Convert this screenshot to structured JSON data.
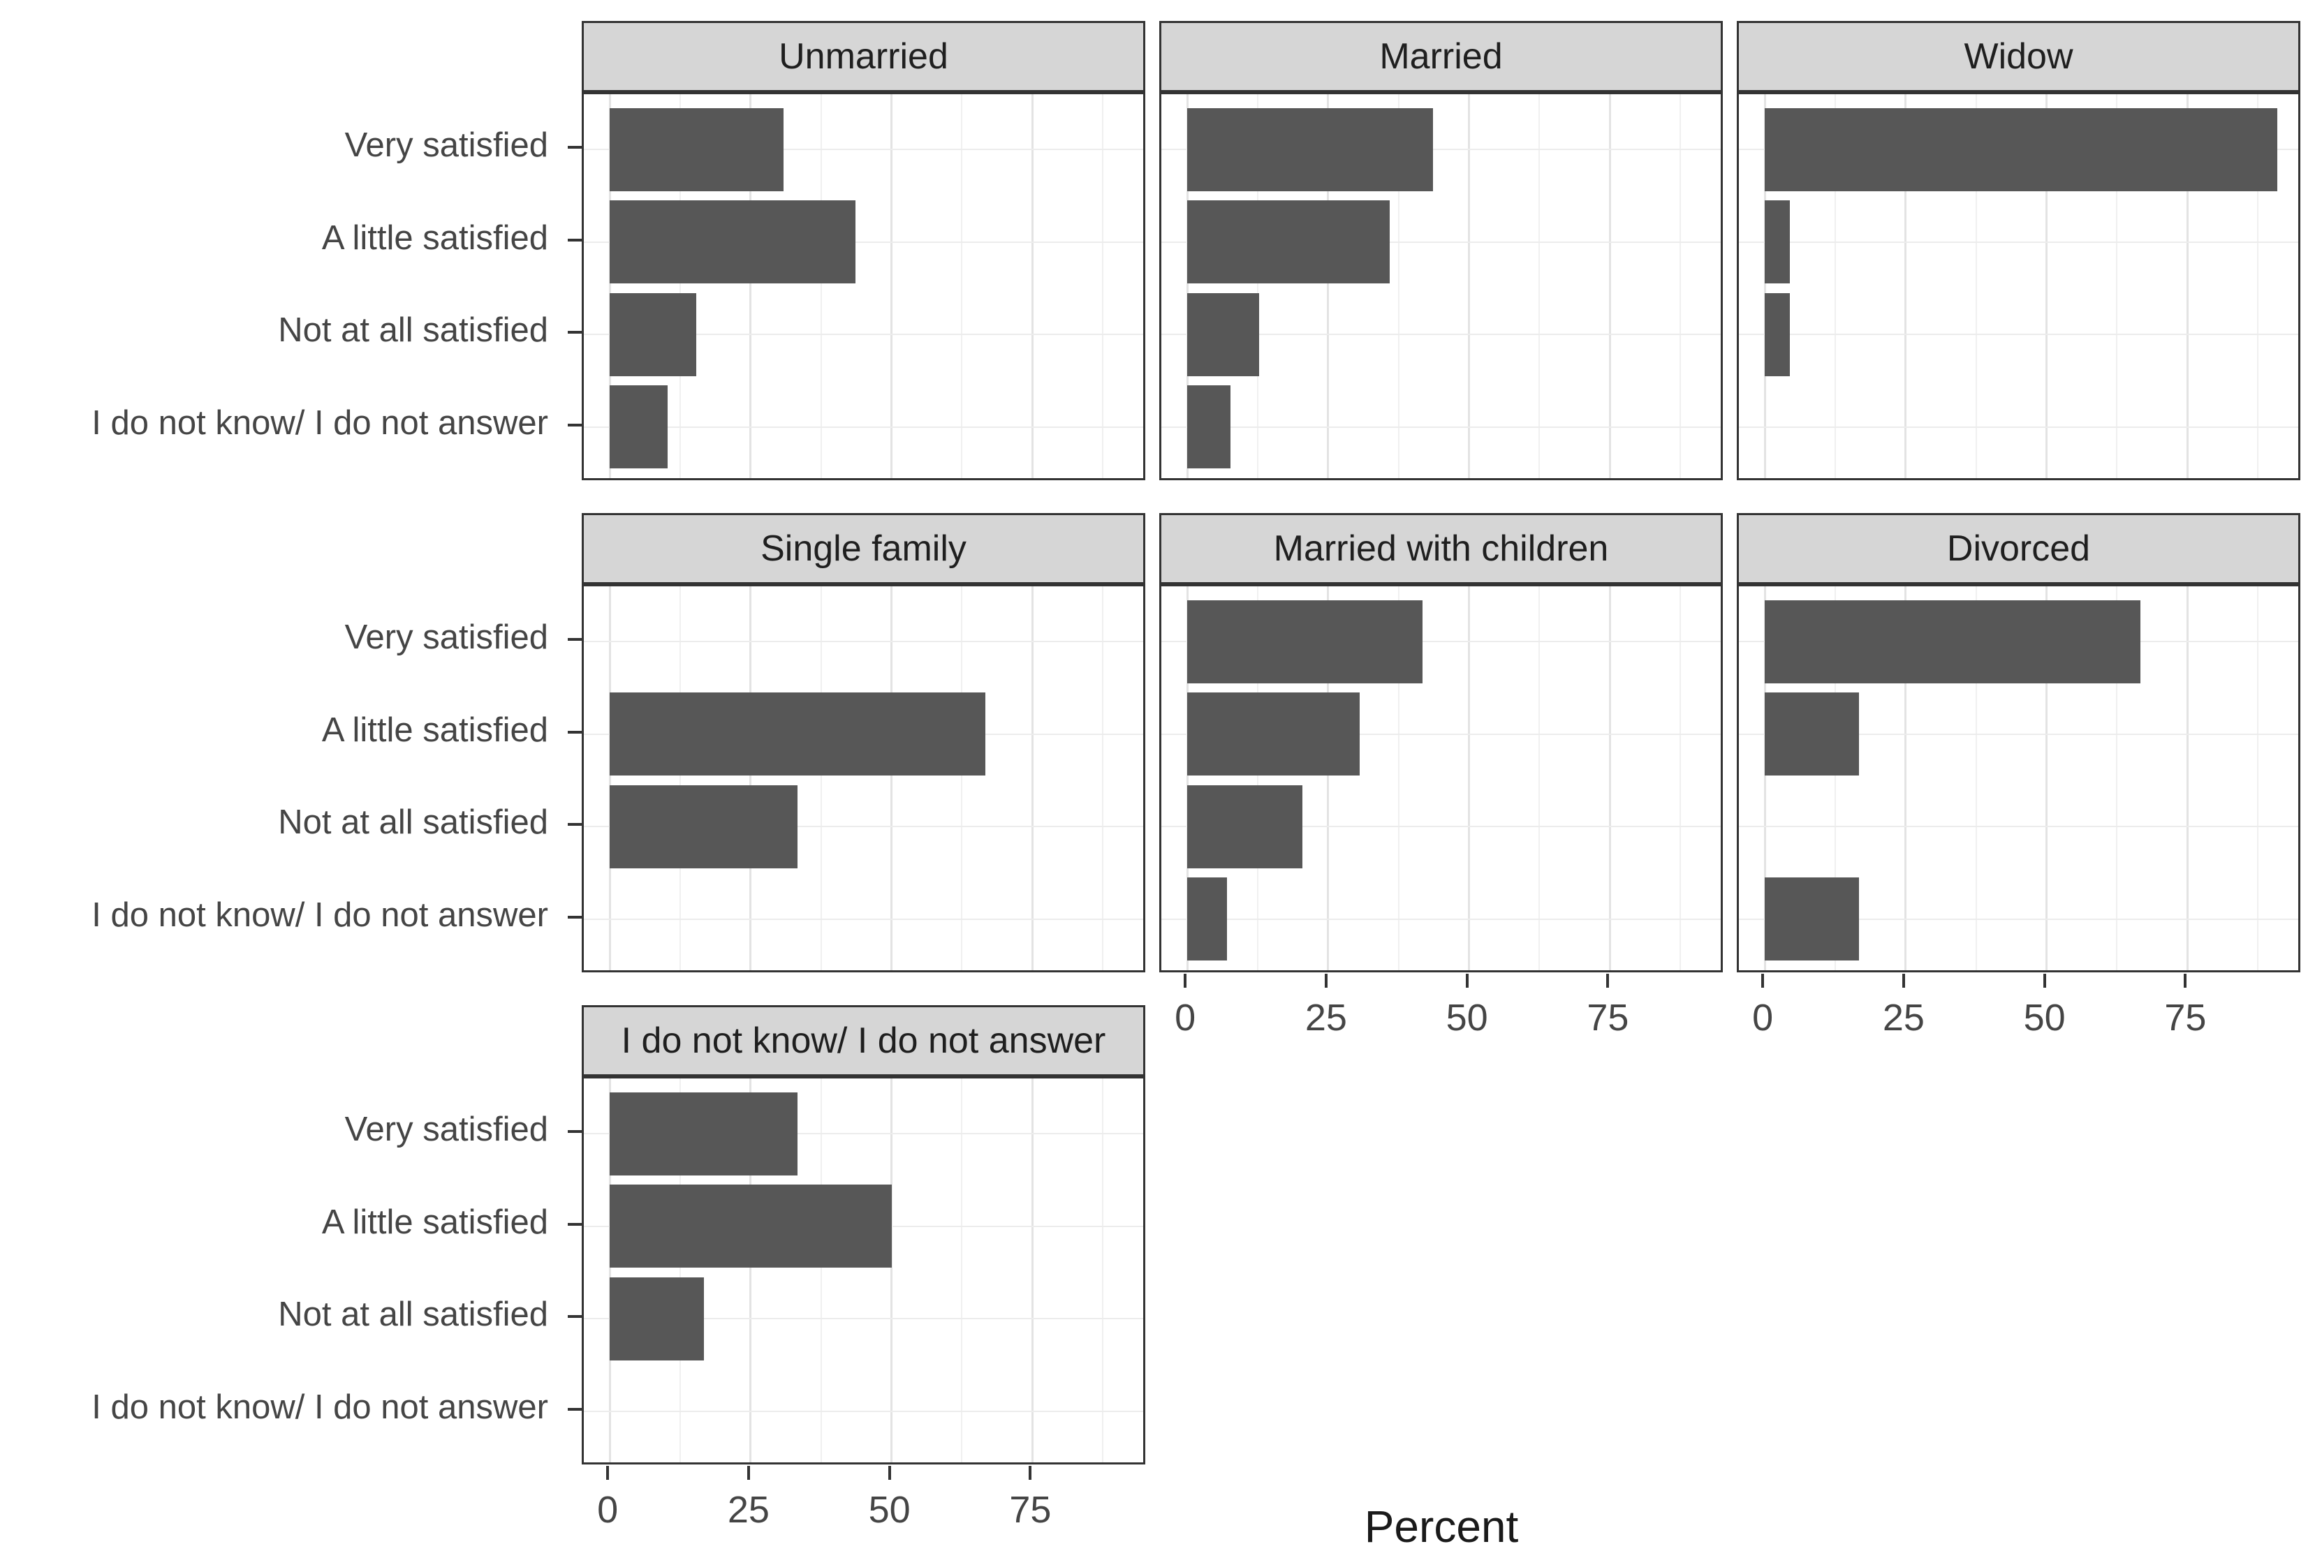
{
  "chart_data": {
    "type": "bar",
    "orientation": "horizontal",
    "xlabel": "Percent",
    "categories": [
      "Very satisfied",
      "A little satisfied",
      "Not at all satisfied",
      "I do not know/ I do not answer"
    ],
    "x_ticks": [
      0,
      25,
      50,
      75
    ],
    "x_minor_ticks": [
      12.5,
      37.5,
      62.5,
      87.5
    ],
    "xlim": [
      -4.6,
      95.4
    ],
    "grid": "vertical major+minor, horizontal major at category centers",
    "legend": "none",
    "facets": [
      {
        "label": "Unmarried",
        "row": 1,
        "col": 1,
        "values": [
          30.8,
          43.6,
          15.4,
          10.3
        ],
        "show_y_axis": true,
        "show_x_axis": false
      },
      {
        "label": "Married",
        "row": 1,
        "col": 2,
        "values": [
          43.6,
          35.9,
          12.8,
          7.7
        ],
        "show_y_axis": false,
        "show_x_axis": false
      },
      {
        "label": "Widow",
        "row": 1,
        "col": 3,
        "values": [
          90.9,
          4.5,
          4.5,
          0
        ],
        "show_y_axis": false,
        "show_x_axis": false
      },
      {
        "label": "Single family",
        "row": 2,
        "col": 1,
        "values": [
          0,
          66.7,
          33.3,
          0
        ],
        "show_y_axis": true,
        "show_x_axis": false
      },
      {
        "label": "Married with children",
        "row": 2,
        "col": 2,
        "values": [
          41.8,
          30.6,
          20.4,
          7.1
        ],
        "show_y_axis": false,
        "show_x_axis": true
      },
      {
        "label": "Divorced",
        "row": 2,
        "col": 3,
        "values": [
          66.7,
          16.7,
          0,
          16.7
        ],
        "show_y_axis": false,
        "show_x_axis": true
      },
      {
        "label": "I do not know/ I do not answer",
        "row": 3,
        "col": 1,
        "values": [
          33.3,
          50,
          16.7,
          0
        ],
        "show_y_axis": true,
        "show_x_axis": true
      }
    ],
    "colors": {
      "bar": "#575757",
      "strip_background": "#d6d6d6",
      "panel_border": "#333333",
      "grid_major": "#e3e3e3",
      "grid_minor": "#f0f0f0",
      "axis_text": "#454545",
      "axis_title": "#1a1a1a"
    }
  }
}
